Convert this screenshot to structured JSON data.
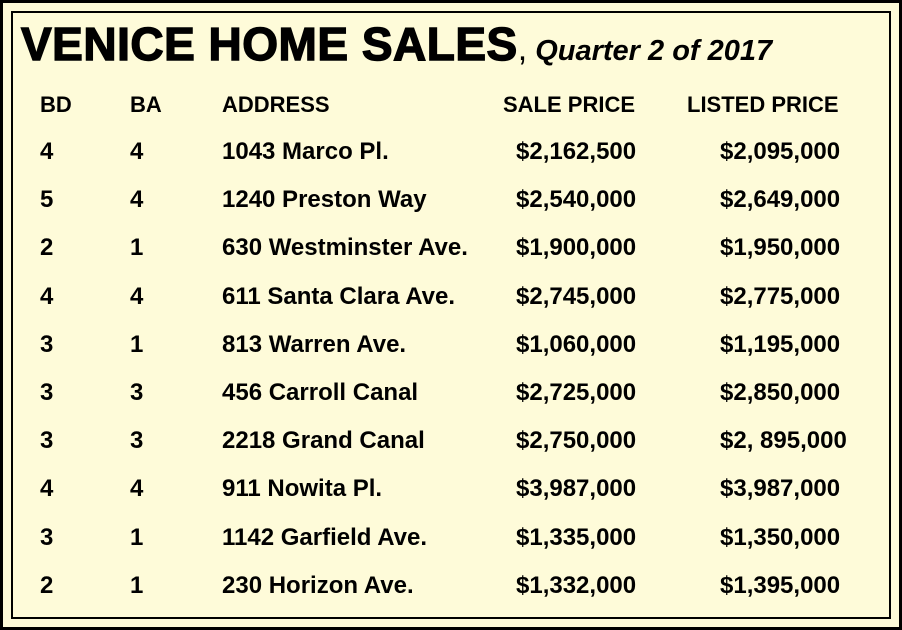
{
  "title": {
    "main": "VENICE HOME SALES",
    "comma": ",",
    "sub": " Quarter 2 of 2017"
  },
  "headers": {
    "bd": "BD",
    "ba": "BA",
    "address": "ADDRESS",
    "sale_price": "SALE PRICE",
    "listed_price": "LISTED PRICE"
  },
  "rows": [
    {
      "bd": "4",
      "ba": "4",
      "address": "1043 Marco Pl.",
      "sale_price": "$2,162,500",
      "listed_price": "$2,095,000"
    },
    {
      "bd": "5",
      "ba": "4",
      "address": "1240 Preston Way",
      "sale_price": "$2,540,000",
      "listed_price": "$2,649,000"
    },
    {
      "bd": "2",
      "ba": "1",
      "address": "630 Westminster Ave.",
      "sale_price": "$1,900,000",
      "listed_price": "$1,950,000"
    },
    {
      "bd": "4",
      "ba": "4",
      "address": "611 Santa Clara Ave.",
      "sale_price": "$2,745,000",
      "listed_price": "$2,775,000"
    },
    {
      "bd": "3",
      "ba": "1",
      "address": "813 Warren Ave.",
      "sale_price": "$1,060,000",
      "listed_price": "$1,195,000"
    },
    {
      "bd": "3",
      "ba": "3",
      "address": "456 Carroll Canal",
      "sale_price": "$2,725,000",
      "listed_price": "$2,850,000"
    },
    {
      "bd": "3",
      "ba": "3",
      "address": "2218 Grand Canal",
      "sale_price": "$2,750,000",
      "listed_price": "$2, 895,000"
    },
    {
      "bd": "4",
      "ba": "4",
      "address": "911 Nowita Pl.",
      "sale_price": "$3,987,000",
      "listed_price": "$3,987,000"
    },
    {
      "bd": "3",
      "ba": "1",
      "address": "1142 Garfield Ave.",
      "sale_price": "$1,335,000",
      "listed_price": "$1,350,000"
    },
    {
      "bd": "2",
      "ba": "1",
      "address": "230 Horizon Ave.",
      "sale_price": "$1,332,000",
      "listed_price": "$1,395,000"
    }
  ]
}
